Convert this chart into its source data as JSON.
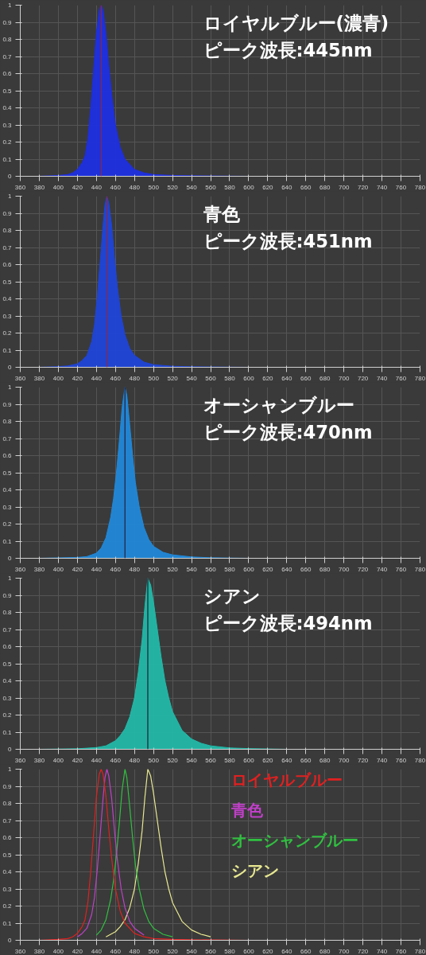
{
  "chart_data": [
    {
      "type": "area",
      "xlim": [
        360,
        780
      ],
      "ylim": [
        0,
        1
      ],
      "xticks": [
        360,
        380,
        400,
        420,
        440,
        460,
        480,
        500,
        520,
        540,
        560,
        580,
        600,
        620,
        640,
        660,
        680,
        700,
        720,
        740,
        760,
        780
      ],
      "yticks": [
        0,
        0.1,
        0.2,
        0.3,
        0.4,
        0.5,
        0.6,
        0.7,
        0.8,
        0.9,
        1
      ],
      "grid": true,
      "annotations": [
        "ロイヤルブルー(濃青)",
        "ピーク波長:445nm"
      ],
      "ref_lines": [
        {
          "axis": "x",
          "value": 445,
          "color": "#8b2848"
        }
      ],
      "series": [
        {
          "color": "#1e2fe0",
          "x": [
            380,
            400,
            410,
            415,
            420,
            425,
            428,
            431,
            434,
            437,
            440,
            443,
            445,
            447,
            450,
            453,
            456,
            460,
            465,
            470,
            480,
            490,
            500,
            520,
            540,
            600,
            780
          ],
          "values": [
            0,
            0.005,
            0.01,
            0.02,
            0.04,
            0.08,
            0.12,
            0.22,
            0.4,
            0.62,
            0.84,
            0.97,
            1.0,
            0.97,
            0.84,
            0.65,
            0.48,
            0.3,
            0.17,
            0.1,
            0.04,
            0.02,
            0.01,
            0.005,
            0.003,
            0,
            0
          ]
        }
      ]
    },
    {
      "type": "area",
      "xlim": [
        360,
        780
      ],
      "ylim": [
        0,
        1
      ],
      "xticks": [
        360,
        380,
        400,
        420,
        440,
        460,
        480,
        500,
        520,
        540,
        560,
        580,
        600,
        620,
        640,
        660,
        680,
        700,
        720,
        740,
        760,
        780
      ],
      "yticks": [
        0,
        0.1,
        0.2,
        0.3,
        0.4,
        0.5,
        0.6,
        0.7,
        0.8,
        0.9,
        1
      ],
      "grid": true,
      "annotations": [
        "青色",
        "ピーク波長:451nm"
      ],
      "ref_lines": [
        {
          "axis": "x",
          "value": 451,
          "color": "#8b2848"
        }
      ],
      "series": [
        {
          "color": "#1f45d8",
          "x": [
            380,
            400,
            410,
            420,
            425,
            430,
            435,
            438,
            441,
            444,
            447,
            449,
            451,
            453,
            456,
            459,
            462,
            466,
            470,
            475,
            480,
            490,
            500,
            520,
            540,
            600,
            780
          ],
          "values": [
            0,
            0.004,
            0.008,
            0.02,
            0.04,
            0.07,
            0.15,
            0.25,
            0.42,
            0.62,
            0.83,
            0.95,
            1.0,
            0.96,
            0.83,
            0.64,
            0.47,
            0.3,
            0.19,
            0.11,
            0.07,
            0.03,
            0.015,
            0.006,
            0.003,
            0,
            0
          ]
        }
      ]
    },
    {
      "type": "area",
      "xlim": [
        360,
        780
      ],
      "ylim": [
        0,
        1
      ],
      "xticks": [
        360,
        380,
        400,
        420,
        440,
        460,
        480,
        500,
        520,
        540,
        560,
        580,
        600,
        620,
        640,
        660,
        680,
        700,
        720,
        740,
        760,
        780
      ],
      "yticks": [
        0,
        0.1,
        0.2,
        0.3,
        0.4,
        0.5,
        0.6,
        0.7,
        0.8,
        0.9,
        1
      ],
      "grid": true,
      "annotations": [
        "オーシャンブルー",
        "ピーク波長:470nm"
      ],
      "ref_lines": [
        {
          "axis": "x",
          "value": 470,
          "color": "#202040"
        }
      ],
      "series": [
        {
          "color": "#2188d8",
          "x": [
            380,
            420,
            430,
            440,
            445,
            450,
            455,
            458,
            461,
            464,
            467,
            470,
            472,
            475,
            478,
            481,
            485,
            490,
            495,
            500,
            510,
            520,
            540,
            560,
            600,
            780
          ],
          "values": [
            0,
            0.005,
            0.01,
            0.03,
            0.06,
            0.12,
            0.24,
            0.35,
            0.5,
            0.68,
            0.88,
            1.0,
            0.95,
            0.78,
            0.6,
            0.44,
            0.3,
            0.18,
            0.11,
            0.07,
            0.035,
            0.02,
            0.008,
            0.003,
            0,
            0
          ]
        }
      ]
    },
    {
      "type": "area",
      "xlim": [
        360,
        780
      ],
      "ylim": [
        0,
        1
      ],
      "xticks": [
        360,
        380,
        400,
        420,
        440,
        460,
        480,
        500,
        520,
        540,
        560,
        580,
        600,
        620,
        640,
        660,
        680,
        700,
        720,
        740,
        760,
        780
      ],
      "yticks": [
        0,
        0.1,
        0.2,
        0.3,
        0.4,
        0.5,
        0.6,
        0.7,
        0.8,
        0.9,
        1
      ],
      "grid": true,
      "annotations": [
        "シアン",
        "ピーク波長:494nm"
      ],
      "ref_lines": [
        {
          "axis": "x",
          "value": 494,
          "color": "#202030"
        }
      ],
      "series": [
        {
          "color": "#22b8a8",
          "x": [
            380,
            420,
            440,
            450,
            460,
            465,
            470,
            475,
            480,
            484,
            488,
            491,
            494,
            497,
            500,
            504,
            508,
            512,
            516,
            520,
            530,
            540,
            550,
            560,
            580,
            600,
            640,
            780
          ],
          "values": [
            0,
            0.003,
            0.01,
            0.02,
            0.05,
            0.08,
            0.12,
            0.19,
            0.3,
            0.45,
            0.64,
            0.84,
            1.0,
            0.96,
            0.86,
            0.7,
            0.54,
            0.4,
            0.3,
            0.22,
            0.11,
            0.06,
            0.035,
            0.02,
            0.008,
            0.004,
            0,
            0
          ]
        }
      ]
    },
    {
      "type": "line",
      "xlim": [
        360,
        780
      ],
      "ylim": [
        0,
        1
      ],
      "xticks": [
        360,
        380,
        400,
        420,
        440,
        460,
        480,
        500,
        520,
        540,
        560,
        580,
        600,
        620,
        640,
        660,
        680,
        700,
        720,
        740,
        760,
        780
      ],
      "yticks": [
        0,
        0.1,
        0.2,
        0.3,
        0.4,
        0.5,
        0.6,
        0.7,
        0.8,
        0.9,
        1
      ],
      "grid": true,
      "series": [
        {
          "name": "ロイヤルブルー",
          "color": "#e02020",
          "x": [
            380,
            400,
            410,
            415,
            420,
            425,
            428,
            431,
            434,
            437,
            440,
            443,
            445,
            447,
            450,
            453,
            456,
            460,
            465,
            470,
            480,
            490,
            500,
            520,
            540,
            600,
            780
          ],
          "values": [
            0,
            0.005,
            0.01,
            0.02,
            0.04,
            0.08,
            0.12,
            0.22,
            0.4,
            0.62,
            0.84,
            0.97,
            1.0,
            0.97,
            0.84,
            0.65,
            0.48,
            0.3,
            0.17,
            0.1,
            0.04,
            0.02,
            0.01,
            0.005,
            0.003,
            0,
            0
          ]
        },
        {
          "name": "青色",
          "color": "#c040c8",
          "x": [
            420,
            425,
            430,
            435,
            438,
            441,
            444,
            447,
            449,
            451,
            453,
            456,
            459,
            462,
            466,
            470,
            475,
            480,
            490
          ],
          "values": [
            0.02,
            0.04,
            0.07,
            0.15,
            0.25,
            0.42,
            0.62,
            0.83,
            0.95,
            1.0,
            0.96,
            0.83,
            0.64,
            0.47,
            0.3,
            0.19,
            0.11,
            0.07,
            0.03
          ]
        },
        {
          "name": "オーシャンブルー",
          "color": "#30c040",
          "x": [
            440,
            445,
            450,
            455,
            458,
            461,
            464,
            467,
            470,
            472,
            475,
            478,
            481,
            485,
            490,
            495,
            500,
            510,
            520
          ],
          "values": [
            0.03,
            0.06,
            0.12,
            0.24,
            0.35,
            0.5,
            0.68,
            0.88,
            1.0,
            0.95,
            0.78,
            0.6,
            0.44,
            0.3,
            0.18,
            0.11,
            0.07,
            0.035,
            0.02
          ]
        },
        {
          "name": "シアン",
          "color": "#e8e890",
          "x": [
            450,
            460,
            465,
            470,
            475,
            480,
            484,
            488,
            491,
            494,
            497,
            500,
            504,
            508,
            512,
            516,
            520,
            530,
            540,
            550,
            560
          ],
          "values": [
            0.02,
            0.05,
            0.08,
            0.12,
            0.19,
            0.3,
            0.45,
            0.64,
            0.84,
            1.0,
            0.96,
            0.86,
            0.7,
            0.54,
            0.4,
            0.3,
            0.22,
            0.11,
            0.06,
            0.035,
            0.02
          ]
        }
      ]
    }
  ]
}
